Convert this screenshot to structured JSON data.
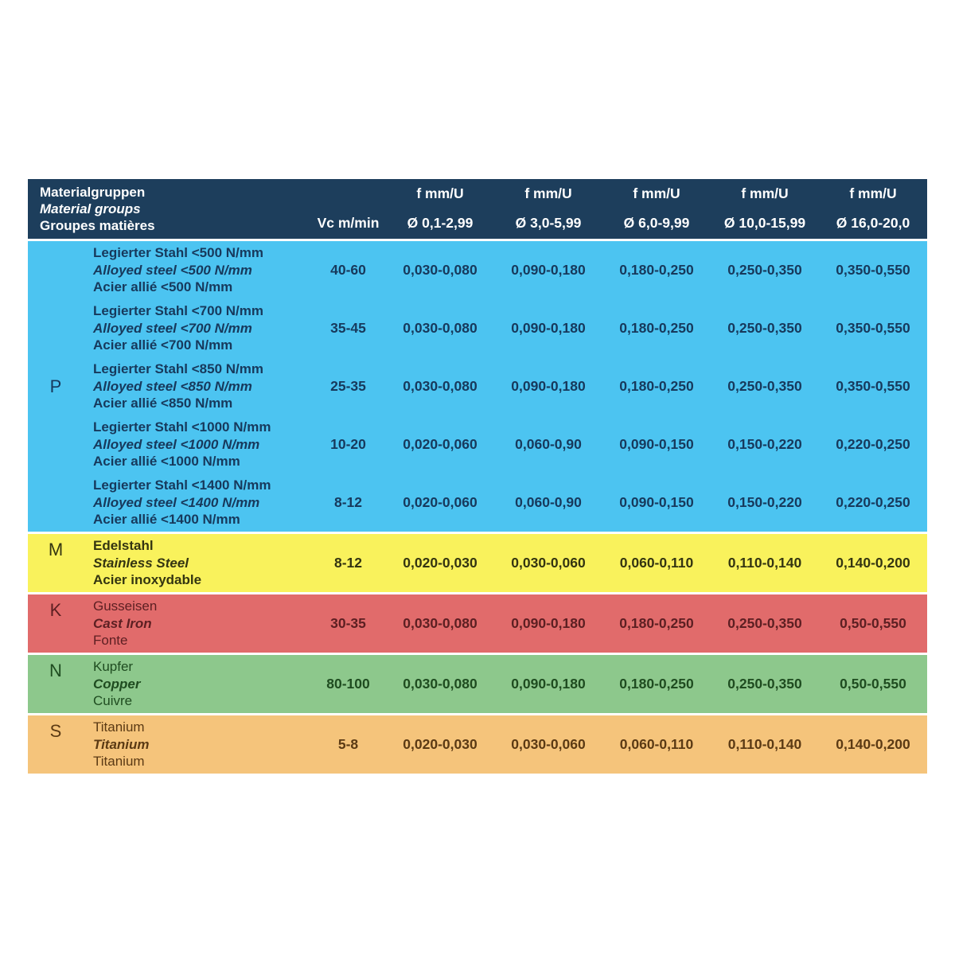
{
  "header": {
    "title_lines": [
      "Materialgruppen",
      "Material groups",
      "Groupes matières"
    ],
    "vc_label": "Vc m/min",
    "feed_unit_label": "f mm/U",
    "diameter_columns": [
      "Ø 0,1-2,99",
      "Ø 3,0-5,99",
      "Ø 6,0-9,99",
      "Ø 10,0-15,99",
      "Ø 16,0-20,0"
    ],
    "background": "#1d3e5c",
    "text_color": "#ffffff"
  },
  "sections": [
    {
      "group": "P",
      "background": "#4cc4f1",
      "text_color": "#17395c",
      "rows": [
        {
          "names": [
            "Legierter Stahl <500 N/mm",
            "Alloyed steel <500 N/mm",
            "Acier allié <500 N/mm"
          ],
          "vc": "40-60",
          "feeds": [
            "0,030-0,080",
            "0,090-0,180",
            "0,180-0,250",
            "0,250-0,350",
            "0,350-0,550"
          ]
        },
        {
          "names": [
            "Legierter Stahl <700 N/mm",
            "Alloyed steel <700 N/mm",
            "Acier allié <700 N/mm"
          ],
          "vc": "35-45",
          "feeds": [
            "0,030-0,080",
            "0,090-0,180",
            "0,180-0,250",
            "0,250-0,350",
            "0,350-0,550"
          ]
        },
        {
          "names": [
            "Legierter Stahl <850 N/mm",
            "Alloyed steel <850 N/mm",
            "Acier allié <850 N/mm"
          ],
          "vc": "25-35",
          "feeds": [
            "0,030-0,080",
            "0,090-0,180",
            "0,180-0,250",
            "0,250-0,350",
            "0,350-0,550"
          ]
        },
        {
          "names": [
            "Legierter Stahl <1000 N/mm",
            "Alloyed steel <1000 N/mm",
            "Acier allié <1000 N/mm"
          ],
          "vc": "10-20",
          "feeds": [
            "0,020-0,060",
            "0,060-0,90",
            "0,090-0,150",
            "0,150-0,220",
            "0,220-0,250"
          ]
        },
        {
          "names": [
            "Legierter Stahl <1400 N/mm",
            "Alloyed steel <1400 N/mm",
            "Acier allié <1400 N/mm"
          ],
          "vc": "8-12",
          "feeds": [
            "0,020-0,060",
            "0,060-0,90",
            "0,090-0,150",
            "0,150-0,220",
            "0,220-0,250"
          ]
        }
      ]
    },
    {
      "group": "M",
      "background": "#f9f25c",
      "text_color": "#343511",
      "rows": [
        {
          "names": [
            "Edelstahl",
            "Stainless Steel",
            "Acier inoxydable"
          ],
          "vc": "8-12",
          "feeds": [
            "0,020-0,030",
            "0,030-0,060",
            "0,060-0,110",
            "0,110-0,140",
            "0,140-0,200"
          ]
        }
      ]
    },
    {
      "group": "K",
      "background": "#e16b6b",
      "text_color": "#5c1f22",
      "rows": [
        {
          "names": [
            "Gusseisen",
            "Cast Iron",
            "Fonte"
          ],
          "vc": "30-35",
          "feeds": [
            "0,030-0,080",
            "0,090-0,180",
            "0,180-0,250",
            "0,250-0,350",
            "0,50-0,550"
          ]
        }
      ]
    },
    {
      "group": "N",
      "background": "#8dc88c",
      "text_color": "#1f4c20",
      "rows": [
        {
          "names": [
            "Kupfer",
            "Copper",
            "Cuivre"
          ],
          "vc": "80-100",
          "feeds": [
            "0,030-0,080",
            "0,090-0,180",
            "0,180-0,250",
            "0,250-0,350",
            "0,50-0,550"
          ]
        }
      ]
    },
    {
      "group": "S",
      "background": "#f5c47b",
      "text_color": "#5b3a14",
      "rows": [
        {
          "names": [
            "Titanium",
            "Titanium",
            "Titanium"
          ],
          "vc": "5-8",
          "feeds": [
            "0,020-0,030",
            "0,030-0,060",
            "0,060-0,110",
            "0,110-0,140",
            "0,140-0,200"
          ]
        }
      ]
    }
  ]
}
